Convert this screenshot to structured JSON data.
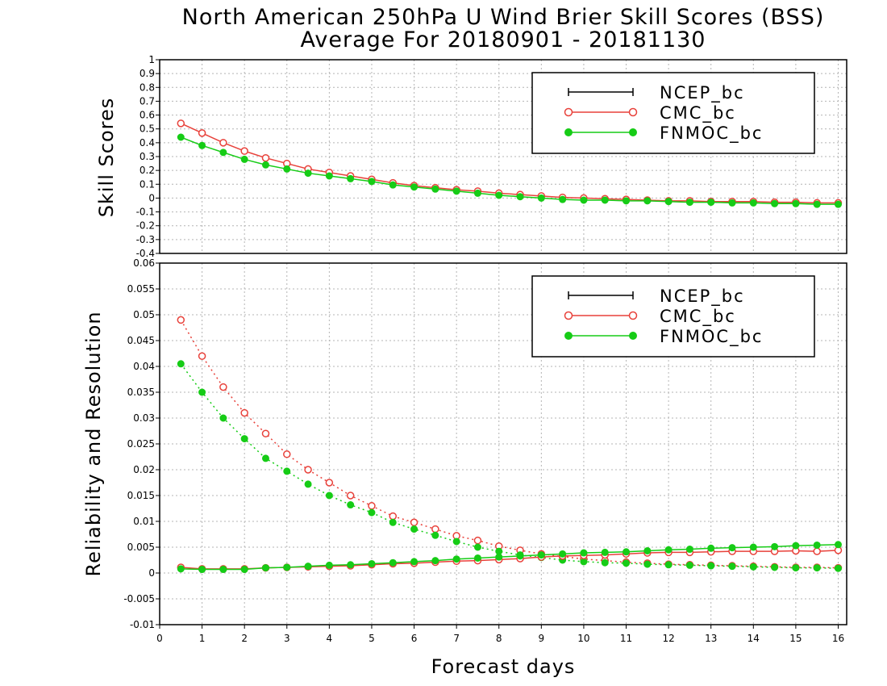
{
  "title": {
    "line1": "North American 250hPa U Wind Brier Skill Scores (BSS)",
    "line2": "Average For 20180901 - 20181130"
  },
  "xaxis": {
    "label": "Forecast days",
    "ticks": [
      0,
      1,
      2,
      3,
      4,
      5,
      6,
      7,
      8,
      9,
      10,
      11,
      12,
      13,
      14,
      15,
      16
    ],
    "range": [
      0,
      16.2
    ]
  },
  "colors": {
    "NCEP_bc": "#000000",
    "CMC_bc": "#e8413a",
    "FNMOC_bc": "#16cc16"
  },
  "chart_data": [
    {
      "type": "line",
      "ylabel": "Skill Scores",
      "ylim": [
        -0.4,
        1
      ],
      "yticks": [
        "-0.4",
        "-0.3",
        "-0.2",
        "-0.1",
        "0",
        "0.1",
        "0.2",
        "0.3",
        "0.4",
        "0.5",
        "0.6",
        "0.7",
        "0.8",
        "0.9",
        "1"
      ],
      "grid": true,
      "legend": {
        "placement": "top-right",
        "entries": [
          "NCEP_bc",
          "CMC_bc",
          "FNMOC_bc"
        ]
      },
      "x": [
        0.5,
        1,
        1.5,
        2,
        2.5,
        3,
        3.5,
        4,
        4.5,
        5,
        5.5,
        6,
        6.5,
        7,
        7.5,
        8,
        8.5,
        9,
        9.5,
        10,
        10.5,
        11,
        11.5,
        12,
        12.5,
        13,
        13.5,
        14,
        14.5,
        15,
        15.5,
        16
      ],
      "series": [
        {
          "name": "CMC_bc",
          "style": "solid",
          "marker": "open-circle",
          "values": [
            0.54,
            0.47,
            0.4,
            0.34,
            0.29,
            0.25,
            0.21,
            0.185,
            0.16,
            0.135,
            0.11,
            0.09,
            0.075,
            0.06,
            0.05,
            0.035,
            0.025,
            0.015,
            0.005,
            0.0,
            -0.005,
            -0.01,
            -0.015,
            -0.02,
            -0.02,
            -0.025,
            -0.025,
            -0.025,
            -0.03,
            -0.03,
            -0.035,
            -0.035
          ]
        },
        {
          "name": "FNMOC_bc",
          "style": "solid",
          "marker": "filled-circle",
          "values": [
            0.44,
            0.38,
            0.33,
            0.28,
            0.24,
            0.21,
            0.18,
            0.16,
            0.14,
            0.12,
            0.095,
            0.08,
            0.065,
            0.05,
            0.035,
            0.02,
            0.01,
            0.0,
            -0.01,
            -0.015,
            -0.015,
            -0.02,
            -0.02,
            -0.025,
            -0.03,
            -0.03,
            -0.035,
            -0.035,
            -0.04,
            -0.04,
            -0.045,
            -0.045
          ]
        }
      ]
    },
    {
      "type": "line",
      "ylabel": "Reliability and Resolution",
      "ylim": [
        -0.01,
        0.06
      ],
      "yticks": [
        "-0.01",
        "-0.005",
        "0",
        "0.005",
        "0.01",
        "0.015",
        "0.02",
        "0.025",
        "0.03",
        "0.035",
        "0.04",
        "0.045",
        "0.05",
        "0.055",
        "0.06"
      ],
      "grid": true,
      "legend": {
        "placement": "top-right",
        "entries": [
          "NCEP_bc",
          "CMC_bc",
          "FNMOC_bc"
        ]
      },
      "x": [
        0.5,
        1,
        1.5,
        2,
        2.5,
        3,
        3.5,
        4,
        4.5,
        5,
        5.5,
        6,
        6.5,
        7,
        7.5,
        8,
        8.5,
        9,
        9.5,
        10,
        10.5,
        11,
        11.5,
        12,
        12.5,
        13,
        13.5,
        14,
        14.5,
        15,
        15.5,
        16
      ],
      "series": [
        {
          "name": "CMC_bc",
          "component": "resolution",
          "style": "dotted",
          "marker": "open-circle",
          "values": [
            0.049,
            0.042,
            0.036,
            0.031,
            0.027,
            0.023,
            0.02,
            0.0175,
            0.015,
            0.013,
            0.011,
            0.0098,
            0.0085,
            0.0072,
            0.0063,
            0.0052,
            0.0044,
            0.0037,
            0.0032,
            0.0027,
            0.0024,
            0.0021,
            0.0019,
            0.0017,
            0.0016,
            0.0015,
            0.0014,
            0.0013,
            0.0012,
            0.0011,
            0.0011,
            0.001
          ]
        },
        {
          "name": "FNMOC_bc",
          "component": "resolution",
          "style": "dotted",
          "marker": "filled-circle",
          "values": [
            0.0405,
            0.035,
            0.03,
            0.026,
            0.0222,
            0.0197,
            0.0172,
            0.015,
            0.0132,
            0.0117,
            0.0098,
            0.0085,
            0.0073,
            0.0061,
            0.005,
            0.0042,
            0.0035,
            0.003,
            0.0025,
            0.0022,
            0.002,
            0.0019,
            0.0017,
            0.0016,
            0.0015,
            0.0014,
            0.0013,
            0.0012,
            0.0011,
            0.001,
            0.001,
            0.0009
          ]
        },
        {
          "name": "CMC_bc",
          "component": "reliability",
          "style": "solid",
          "marker": "open-circle",
          "values": [
            0.0011,
            0.0008,
            0.0008,
            0.0008,
            0.001,
            0.0011,
            0.0012,
            0.0013,
            0.0014,
            0.0016,
            0.0018,
            0.0019,
            0.0021,
            0.0023,
            0.0024,
            0.0026,
            0.0028,
            0.0031,
            0.0033,
            0.0034,
            0.0035,
            0.0037,
            0.0039,
            0.004,
            0.004,
            0.0041,
            0.0042,
            0.0042,
            0.0042,
            0.0043,
            0.0042,
            0.0044
          ]
        },
        {
          "name": "FNMOC_bc",
          "component": "reliability",
          "style": "solid",
          "marker": "filled-circle",
          "values": [
            0.0008,
            0.0007,
            0.0007,
            0.0007,
            0.001,
            0.0011,
            0.0013,
            0.0015,
            0.0016,
            0.0018,
            0.002,
            0.0022,
            0.0024,
            0.0027,
            0.0029,
            0.0031,
            0.0033,
            0.0035,
            0.0037,
            0.0039,
            0.004,
            0.0041,
            0.0043,
            0.0045,
            0.0046,
            0.0048,
            0.0049,
            0.005,
            0.0051,
            0.0053,
            0.0054,
            0.0055
          ]
        }
      ]
    }
  ]
}
